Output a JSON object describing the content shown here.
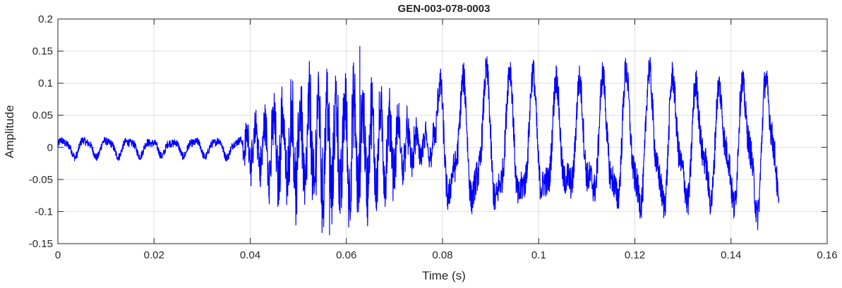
{
  "chart_data": {
    "type": "line",
    "title": "GEN-003-078-0003",
    "xlabel": "Time (s)",
    "ylabel": "Amplitude",
    "xlim": [
      0,
      0.16
    ],
    "ylim": [
      -0.15,
      0.2
    ],
    "grid": true,
    "line_color": "#0000ff",
    "x_ticks": [
      {
        "value": 0,
        "label": "0"
      },
      {
        "value": 0.02,
        "label": "0.02"
      },
      {
        "value": 0.04,
        "label": "0.04"
      },
      {
        "value": 0.06,
        "label": "0.06"
      },
      {
        "value": 0.08,
        "label": "0.08"
      },
      {
        "value": 0.1,
        "label": "0.1"
      },
      {
        "value": 0.12,
        "label": "0.12"
      },
      {
        "value": 0.14,
        "label": "0.14"
      },
      {
        "value": 0.16,
        "label": "0.16"
      }
    ],
    "y_ticks": [
      {
        "value": 0.2,
        "label": "0.2"
      },
      {
        "value": 0.15,
        "label": "0.15"
      },
      {
        "value": 0.1,
        "label": "0.1"
      },
      {
        "value": 0.05,
        "label": "0.05"
      },
      {
        "value": 0,
        "label": "0"
      },
      {
        "value": -0.05,
        "label": "-0.05"
      },
      {
        "value": -0.1,
        "label": "-0.1"
      },
      {
        "value": -0.15,
        "label": "-0.15"
      }
    ],
    "series": [
      {
        "x_start": 0,
        "x_end": 0.15,
        "segments": [
          {
            "t0": 0,
            "t1": 0.0385,
            "type": "tone",
            "freq": 220,
            "amp": 0.011,
            "noise": 0.006
          },
          {
            "t0": 0.0385,
            "t1": 0.0785,
            "type": "burst",
            "amp_ramp": [
              0.03,
              0.14
            ],
            "noise": 0.06
          },
          {
            "t0": 0.0785,
            "t1": 0.15,
            "type": "tone",
            "freq": 205,
            "amp": 0.085,
            "noise": 0.025
          }
        ],
        "peak_max": 0.158,
        "peak_min": -0.137
      }
    ]
  }
}
